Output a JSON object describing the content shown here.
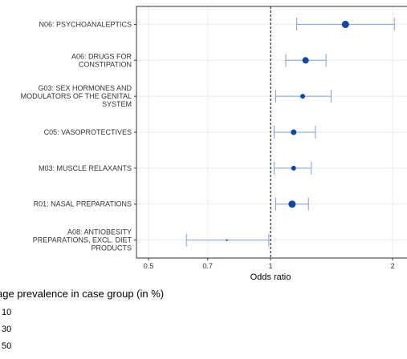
{
  "chart_data": {
    "type": "forest",
    "xlabel": "Odds ratio",
    "log_x": true,
    "grid": true,
    "categories": [
      "N06: PSYCHOANALEPTICS",
      "A06: DRUGS FOR\nCONSTIPATION",
      "G03: SEX HORMONES AND\nMODULATORS OF THE GENITAL\nSYSTEM",
      "C05: VASOPROTECTIVES",
      "M03: MUSCLE RELAXANTS",
      "R01: NASAL PREPARATIONS",
      "A08: ANTIOBESITY\nPREPARATIONS, EXCL. DIET\nPRODUCTS"
    ],
    "values": [
      1.53,
      1.22,
      1.2,
      1.14,
      1.14,
      1.13,
      0.78
    ],
    "lower": [
      1.16,
      1.09,
      1.03,
      1.02,
      1.02,
      1.03,
      0.62
    ],
    "upper": [
      2.02,
      1.37,
      1.41,
      1.29,
      1.26,
      1.24,
      0.99
    ],
    "sizes": [
      32,
      25,
      14,
      19,
      14,
      32,
      2
    ],
    "point_color": "#0d47a1",
    "ci_color": "#7d9fe6",
    "xlim": [
      0.467,
      2.17
    ],
    "xticks": [
      0.5,
      0.7,
      1,
      2
    ],
    "reference_line": 1,
    "size_legend": {
      "title": "age prevalence in case group (in %)",
      "values": [
        10,
        30,
        50
      ]
    }
  }
}
